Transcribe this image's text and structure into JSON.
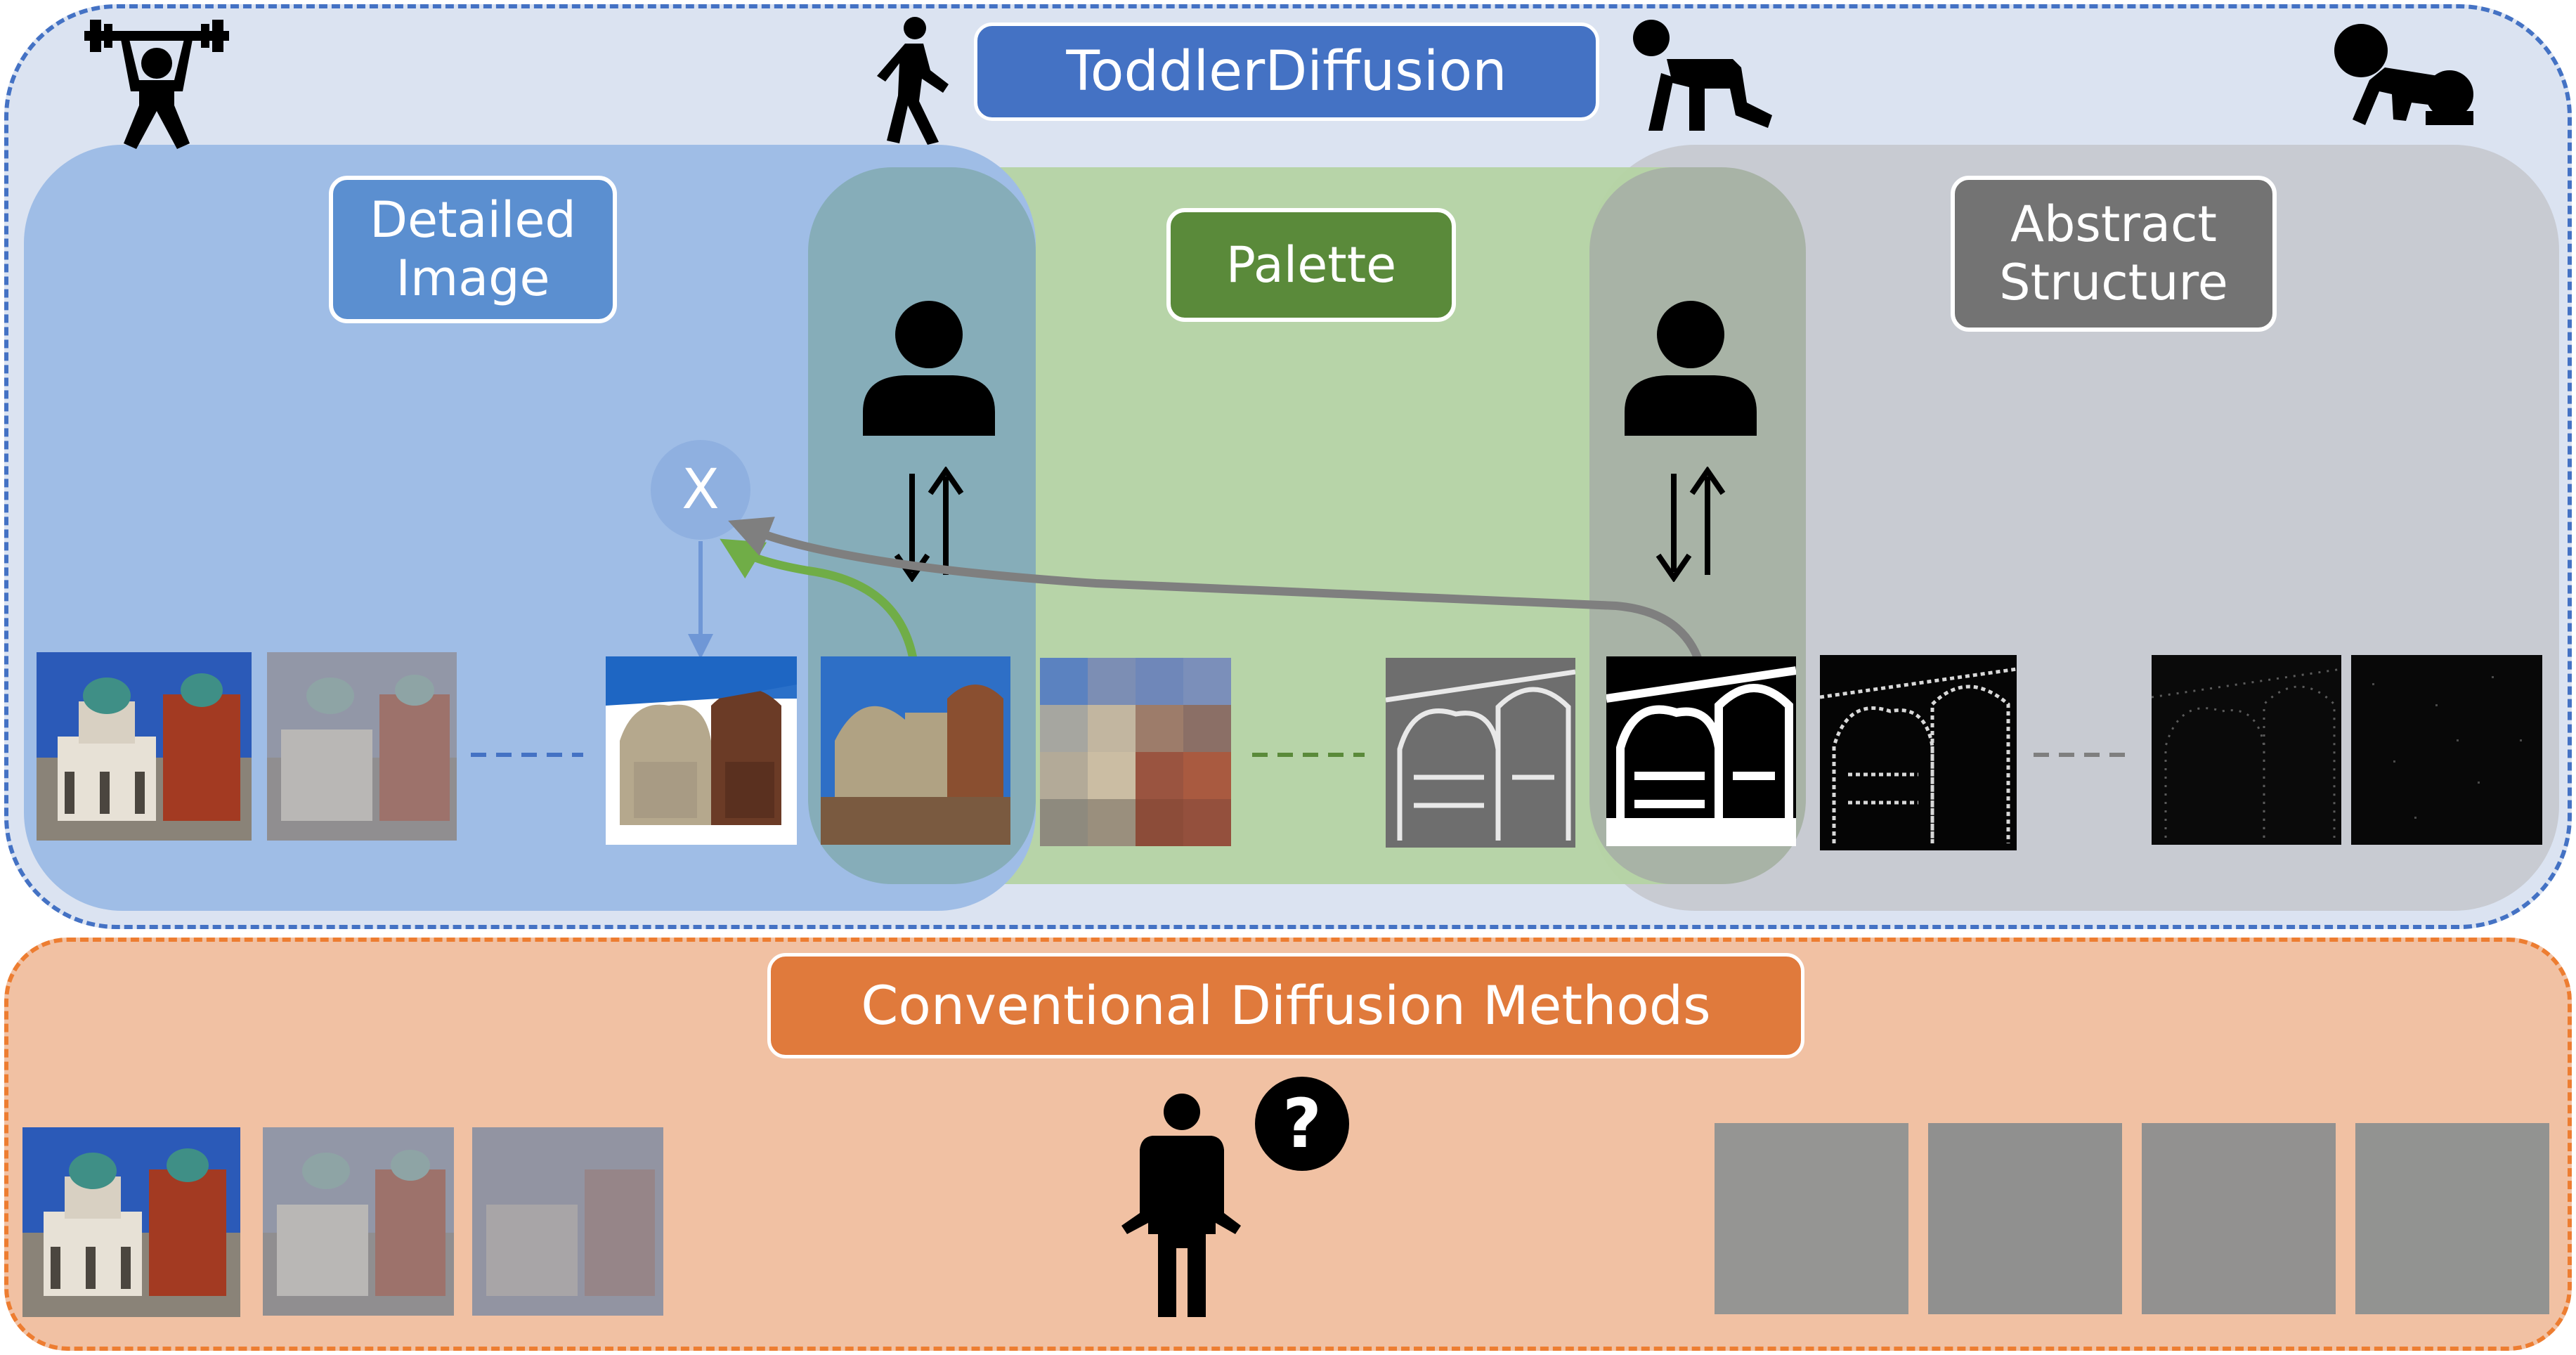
{
  "toddler_panel": {
    "title": "ToddlerDiffusion",
    "stages": [
      {
        "key": "detailed",
        "label": "Detailed\nImage",
        "color": "#5b8fd0"
      },
      {
        "key": "palette",
        "label": "Palette",
        "color": "#5a8a3a"
      },
      {
        "key": "abstract",
        "label": "Abstract\nStructure",
        "color": "#737373"
      }
    ],
    "x_node_label": "X",
    "figures": [
      "weightlifter-icon",
      "walking-person-icon",
      "crawling-person-icon",
      "baby-crawling-icon"
    ],
    "user_icons": [
      "user-icon",
      "user-icon"
    ]
  },
  "conventional_panel": {
    "title": "Conventional Diffusion Methods",
    "figure": "confused-person-icon",
    "badge": "?"
  },
  "colors": {
    "toddler_bg": "#dbe3f1",
    "toddler_border": "#4472c4",
    "detailed_region": "#9fbde6",
    "palette_region": "#b5d3a3",
    "abstract_region": "#c8cbd2",
    "title_box": "#4472c4",
    "conventional_bg": "#f1c1a3",
    "conventional_border": "#ed7d31",
    "conventional_title_box": "#e07a3c",
    "green_arrow": "#70ad47",
    "gray_arrow": "#7f7f7f",
    "x_node": "#8fb0e0"
  }
}
